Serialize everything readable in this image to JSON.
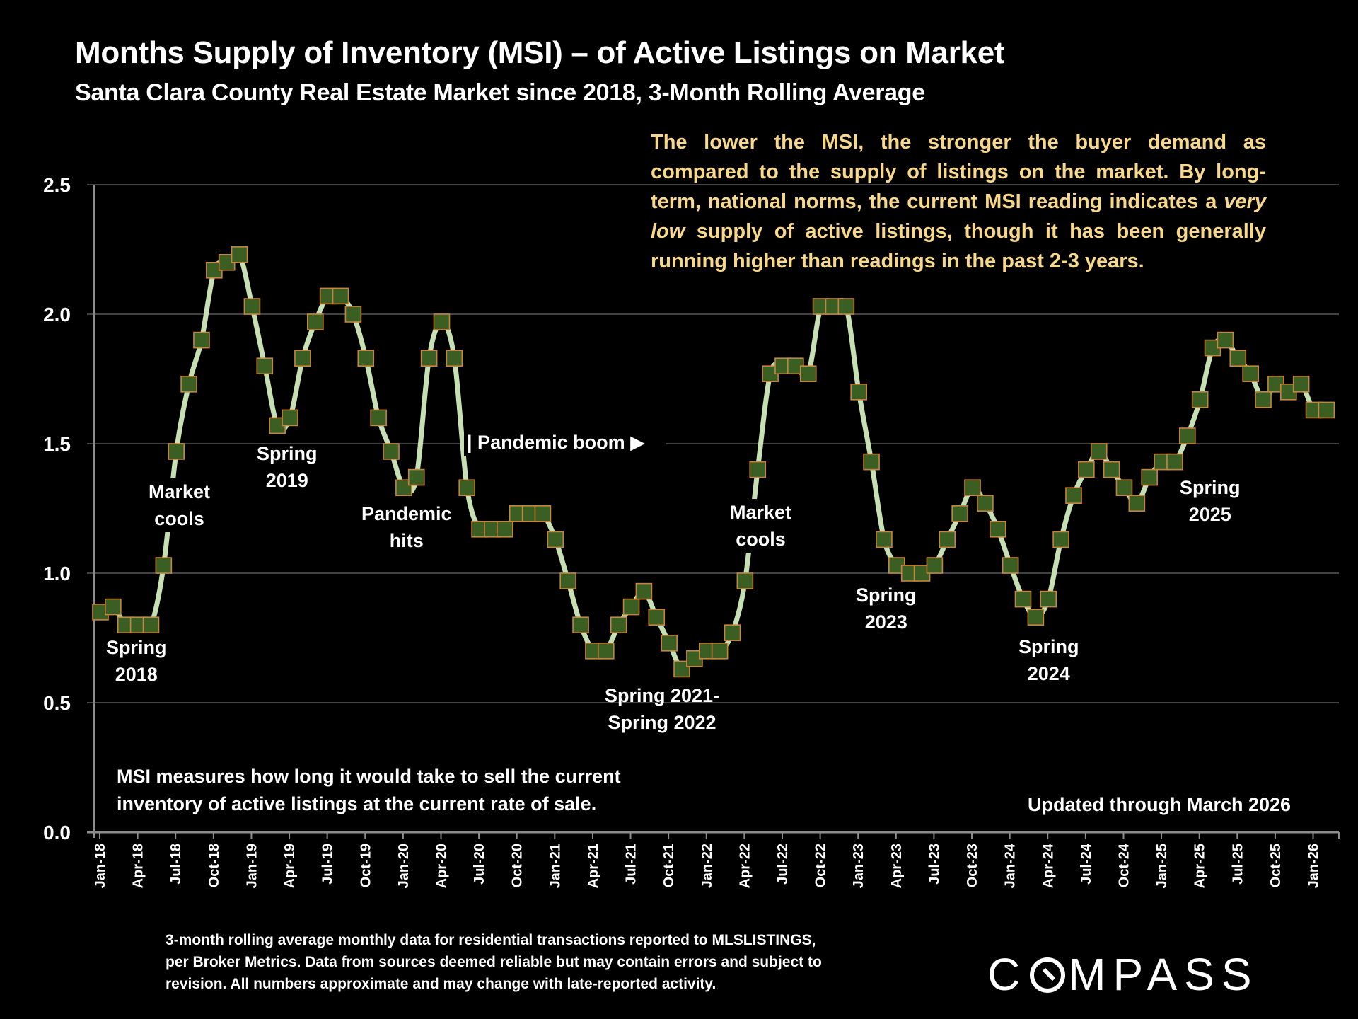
{
  "header": {
    "title": "Months Supply of Inventory (MSI) – of Active Listings on Market",
    "subtitle": "Santa Clara County Real Estate Market since 2018, 3-Month Rolling Average"
  },
  "callout": {
    "part1": "The lower the MSI, the stronger the buyer demand as compared to the supply of listings on the market. By long-term, national norms, the current MSI reading indicates a ",
    "emphasis": "very low",
    "part2": " supply of active listings, though it has been generally running higher than readings in the past 2-3 years."
  },
  "annotations": {
    "spring2018": [
      "Spring",
      "2018"
    ],
    "market_cools_2018": [
      "Market",
      "cools"
    ],
    "spring2019": [
      "Spring",
      "2019"
    ],
    "pandemic_hits": [
      "Pandemic",
      "hits"
    ],
    "pandemic_boom": "| Pandemic boom ▶",
    "spring2021_2022": [
      "Spring 2021-",
      "Spring 2022"
    ],
    "market_cools_2022": [
      "Market",
      "cools"
    ],
    "spring2023": [
      "Spring",
      "2023"
    ],
    "spring2024": [
      "Spring",
      "2024"
    ],
    "spring2025": [
      "Spring",
      "2025"
    ]
  },
  "notes": {
    "msi_definition_line1": "MSI measures how long it would take to sell the current",
    "msi_definition_line2": "inventory of active listings at the current rate of sale.",
    "updated": "Updated through March 2026",
    "source_line1": "3-month rolling average monthly data for residential transactions reported to MLSLISTINGS,",
    "source_line2": "per Broker Metrics. Data from sources deemed reliable but may contain errors and subject to",
    "source_line3": "revision. All numbers approximate and may change with late-reported activity."
  },
  "brand": {
    "logo_text_before": "C",
    "logo_text_after": "MPASS"
  },
  "colors": {
    "background": "#000000",
    "line": "#c6e0b4",
    "marker_fill": "#3b5e23",
    "marker_border": "#c8843c",
    "gridline": "#595959",
    "callout_text": "#f8d98b"
  },
  "chart_data": {
    "type": "line",
    "title": "Months Supply of Inventory (MSI) – of Active Listings on Market",
    "subtitle": "Santa Clara County Real Estate Market since 2018, 3-Month Rolling Average",
    "xlabel": "",
    "ylabel": "",
    "ylim": [
      0,
      2.5
    ],
    "yticks": [
      "0.0",
      "0.5",
      "1.0",
      "1.5",
      "2.0",
      "2.5"
    ],
    "grid": true,
    "legend": "none",
    "start_month": "Jan-18",
    "end_month": "Mar-26",
    "xtick_labels": [
      "Jan-18",
      "Apr-18",
      "Jul-18",
      "Oct-18",
      "Jan-19",
      "Apr-19",
      "Jul-19",
      "Oct-19",
      "Jan-20",
      "Apr-20",
      "Jul-20",
      "Oct-20",
      "Jan-21",
      "Apr-21",
      "Jul-21",
      "Oct-21",
      "Jan-22",
      "Apr-22",
      "Jul-22",
      "Oct-22",
      "Jan-23",
      "Apr-23",
      "Jul-23",
      "Oct-23",
      "Jan-24",
      "Apr-24",
      "Jul-24",
      "Oct-24",
      "Jan-25",
      "Apr-25",
      "Jul-25",
      "Oct-25",
      "Jan-26"
    ],
    "series": [
      {
        "name": "MSI (3-month rolling average)",
        "values": [
          0.85,
          0.87,
          0.8,
          0.8,
          0.8,
          1.03,
          1.47,
          1.73,
          1.9,
          2.17,
          2.2,
          2.23,
          2.03,
          1.8,
          1.57,
          1.6,
          1.83,
          1.97,
          2.07,
          2.07,
          2.0,
          1.83,
          1.6,
          1.47,
          1.33,
          1.37,
          1.83,
          1.97,
          1.83,
          1.33,
          1.17,
          1.17,
          1.17,
          1.23,
          1.23,
          1.23,
          1.13,
          0.97,
          0.8,
          0.7,
          0.7,
          0.8,
          0.87,
          0.93,
          0.83,
          0.73,
          0.63,
          0.67,
          0.7,
          0.7,
          0.77,
          0.97,
          1.4,
          1.77,
          1.8,
          1.8,
          1.77,
          2.03,
          2.03,
          2.03,
          1.7,
          1.43,
          1.13,
          1.03,
          1.0,
          1.0,
          1.03,
          1.13,
          1.23,
          1.33,
          1.27,
          1.17,
          1.03,
          0.9,
          0.83,
          0.9,
          1.13,
          1.3,
          1.4,
          1.47,
          1.4,
          1.33,
          1.27,
          1.37,
          1.43,
          1.43,
          1.53,
          1.67,
          1.87,
          1.9,
          1.83,
          1.77,
          1.67,
          1.73,
          1.7,
          1.73,
          1.63,
          1.63
        ]
      }
    ]
  }
}
